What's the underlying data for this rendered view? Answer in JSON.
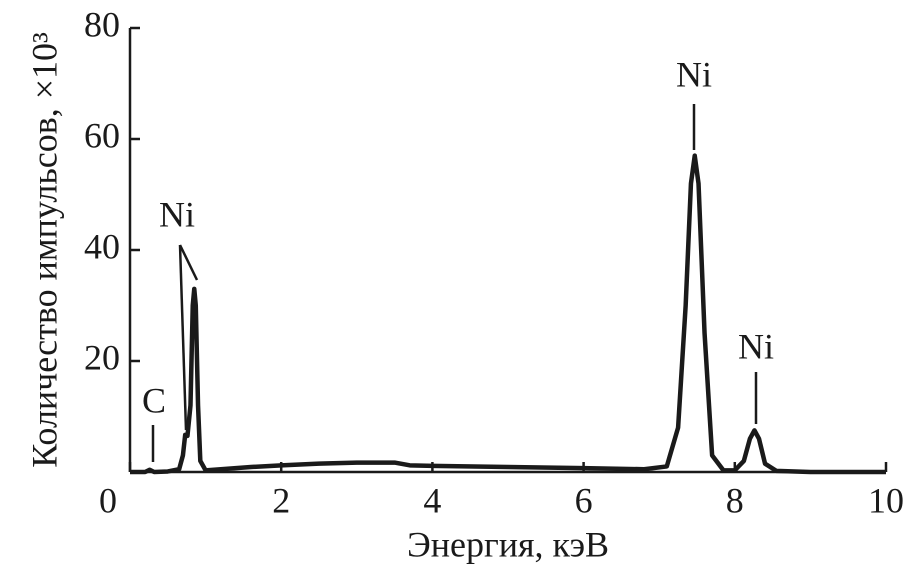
{
  "chart_data": {
    "type": "line",
    "xlabel": "Энергия, кэВ",
    "ylabel": "Количество импульсов, ×10³",
    "x": [
      0,
      0.2,
      0.26,
      0.32,
      0.5,
      0.65,
      0.7,
      0.73,
      0.76,
      0.8,
      0.83,
      0.85,
      0.87,
      0.9,
      0.93,
      1.0,
      1.2,
      1.6,
      2.0,
      2.5,
      3.0,
      3.5,
      3.7,
      4.0,
      5.0,
      6.0,
      6.8,
      7.1,
      7.25,
      7.35,
      7.42,
      7.47,
      7.52,
      7.6,
      7.7,
      7.85,
      8.0,
      8.12,
      8.2,
      8.26,
      8.32,
      8.4,
      8.55,
      9.0,
      10.0
    ],
    "values": [
      0,
      0,
      0.4,
      0,
      0.1,
      0.5,
      3,
      6.7,
      6.5,
      12,
      30,
      33,
      30,
      12,
      2,
      0.3,
      0.5,
      0.9,
      1.2,
      1.5,
      1.7,
      1.7,
      1.2,
      1.1,
      0.9,
      0.7,
      0.5,
      1,
      8,
      30,
      52,
      57,
      52,
      25,
      3,
      0.3,
      0.3,
      2,
      6,
      7.5,
      6,
      1.5,
      0.2,
      0,
      0
    ],
    "color": "#1a1a1a",
    "xlim": [
      0,
      10
    ],
    "xticks": [
      0,
      2,
      4,
      6,
      8,
      10
    ],
    "ylim": [
      0,
      80
    ],
    "yticks": [
      20,
      40,
      60,
      80
    ],
    "annotations": [
      "C",
      "Ni",
      "Ni",
      "Ni"
    ]
  }
}
